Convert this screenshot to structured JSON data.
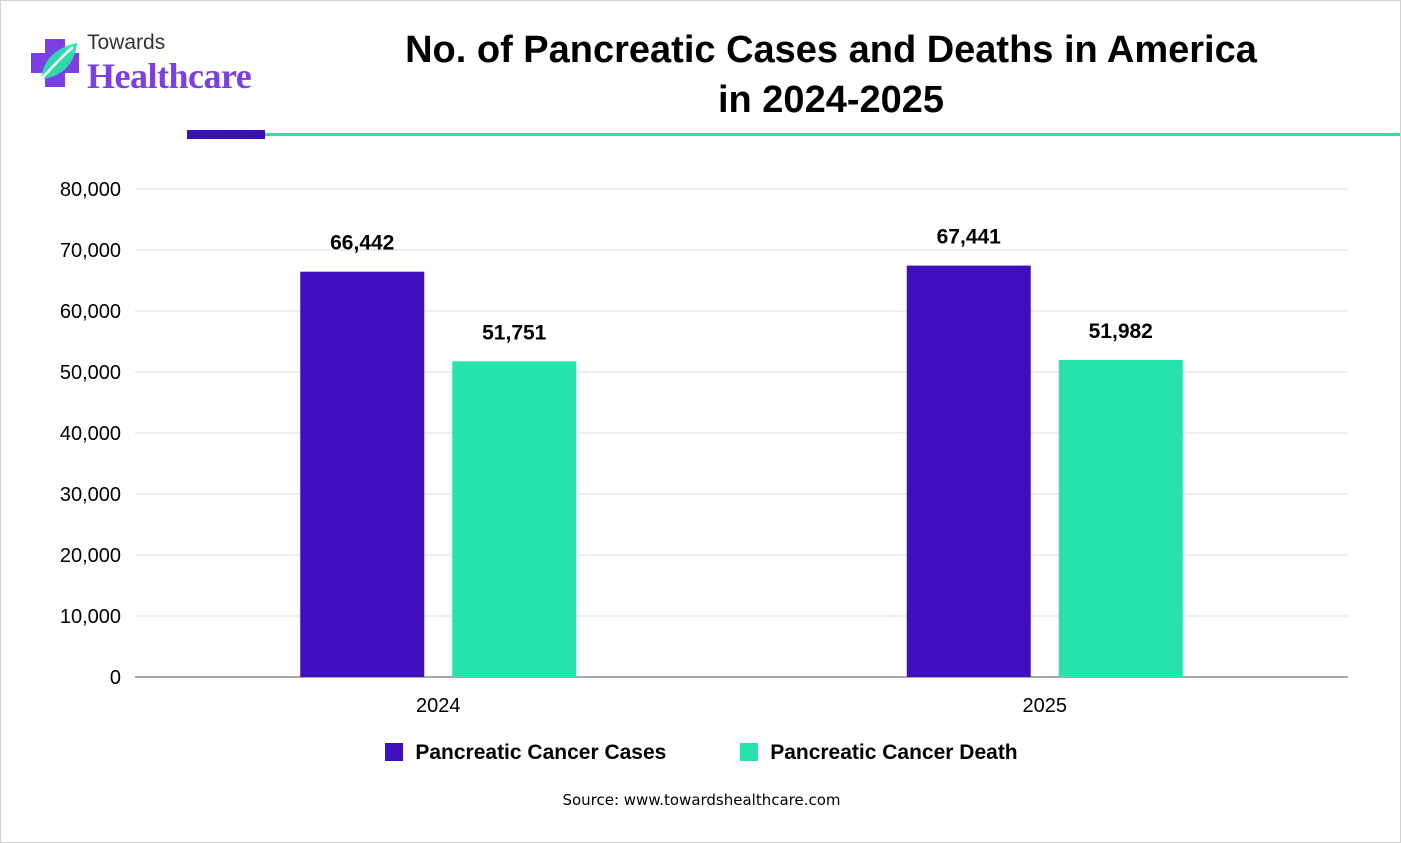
{
  "brand": {
    "small_text": "Towards",
    "big_text": "Healthcare"
  },
  "title_line1": "No. of Pancreatic Cases and Deaths in America",
  "title_line2": "in 2024-2025",
  "source": "Source: www.towardshealthcare.com",
  "colors": {
    "cases": "#3d0fbd",
    "death": "#27e2aa",
    "rule_dark": "#3a0fbd",
    "rule_light": "#2ce0a8",
    "brand_purple": "#7b3fe4"
  },
  "chart_data": {
    "type": "bar",
    "title": "No. of Pancreatic Cases and Deaths in America in 2024-2025",
    "categories": [
      "2024",
      "2025"
    ],
    "series": [
      {
        "name": "Pancreatic Cancer Cases",
        "values": [
          66442,
          67441
        ],
        "labels": [
          "66,442",
          "67,441"
        ]
      },
      {
        "name": "Pancreatic Cancer Death",
        "values": [
          51751,
          51982
        ],
        "labels": [
          "51,751",
          "51,982"
        ]
      }
    ],
    "ylim": [
      0,
      80000
    ],
    "yticks": [
      0,
      10000,
      20000,
      30000,
      40000,
      50000,
      60000,
      70000,
      80000
    ],
    "ytick_labels": [
      "0",
      "10,000",
      "20,000",
      "30,000",
      "40,000",
      "50,000",
      "60,000",
      "70,000",
      "80,000"
    ],
    "grid": true,
    "legend_position": "bottom"
  }
}
